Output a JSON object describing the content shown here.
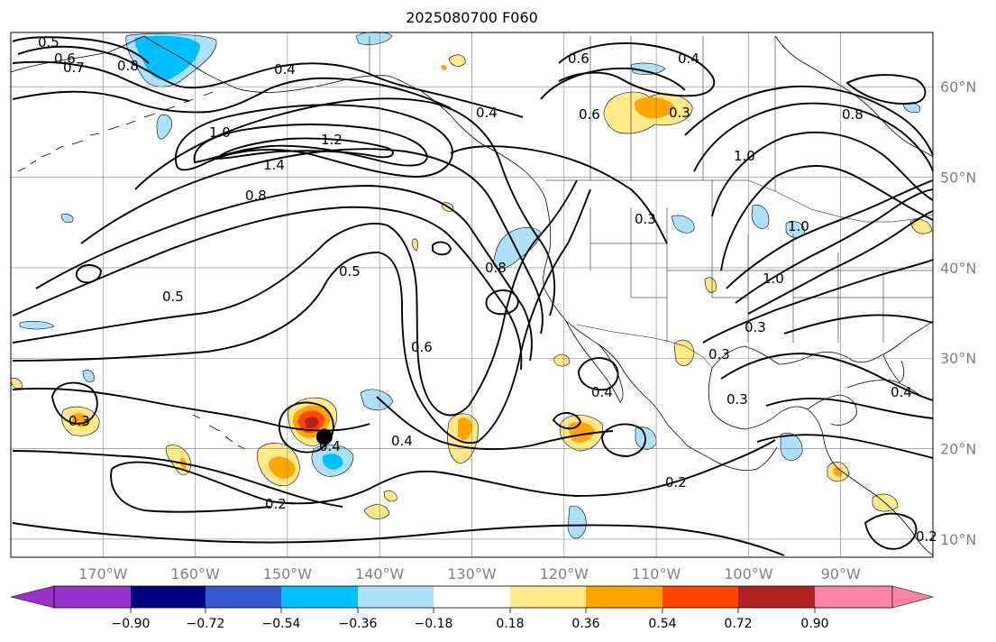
{
  "title": "2025080700 F060",
  "map": {
    "lat_labels": [
      "60°N",
      "50°N",
      "40°N",
      "30°N",
      "20°N",
      "10°N"
    ],
    "lat_values": [
      60,
      50,
      40,
      30,
      20,
      10
    ],
    "lon_labels": [
      "170°W",
      "160°W",
      "150°W",
      "140°W",
      "130°W",
      "120°W",
      "110°W",
      "100°W",
      "90°W"
    ],
    "lon_values": [
      -170,
      -160,
      -150,
      -140,
      -130,
      -120,
      -110,
      -100,
      -90
    ],
    "lon_range": [
      -180,
      -80
    ],
    "lat_range": [
      8,
      66
    ],
    "grid": true,
    "storm_marker": {
      "lon": -146,
      "lat": 21.3
    }
  },
  "contour_labels": [
    "0.5",
    "0.6",
    "0.7",
    "0.8",
    "0.4",
    "1.0",
    "1.4",
    "1.2",
    "0.8",
    "0.5",
    "0.5",
    "0.8",
    "0.6",
    "0.4",
    "0.3",
    "0.4",
    "0.4",
    "0.3",
    "0.2",
    "0.2",
    "0.6",
    "0.4",
    "0.4",
    "0.6",
    "0.3",
    "0.8",
    "1.0",
    "1.0",
    "0.3",
    "0.3",
    "0.3",
    "0.4",
    "0.2",
    "1.0"
  ],
  "colorbar": {
    "ticks": [
      "−0.90",
      "−0.72",
      "−0.54",
      "−0.36",
      "−0.18",
      "0.18",
      "0.36",
      "0.54",
      "0.72",
      "0.90"
    ],
    "colors": {
      "under": "#9932cc",
      "bins": [
        "#000080",
        "#3658cc",
        "#00bfff",
        "#aee0fa",
        "#ffffff",
        "#ffe98a",
        "#ffa500",
        "#ff4500",
        "#b22222",
        "#ff85a8"
      ],
      "over": "#ff85a8"
    }
  }
}
